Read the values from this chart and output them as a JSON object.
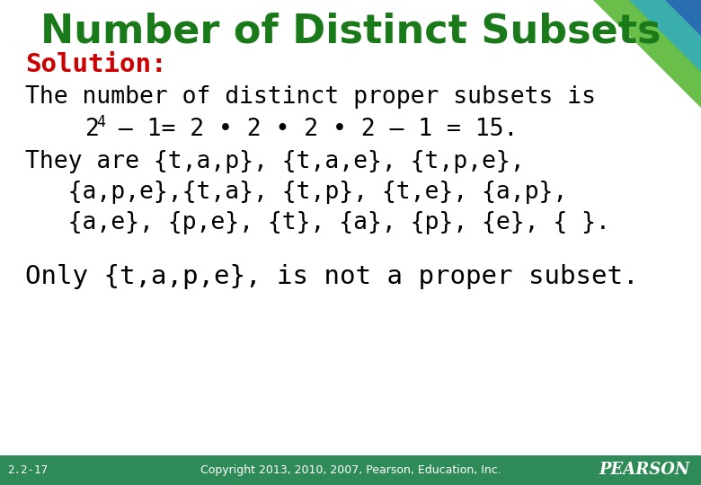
{
  "title": "Number of Distinct Subsets",
  "title_color": "#1a7a1a",
  "solution_label": "Solution:",
  "solution_color": "#cc0000",
  "line1": "The number of distinct proper subsets is",
  "line3": "They are {t,a,p}, {t,a,e}, {t,p,e},",
  "line4": "   {a,p,e},{t,a}, {t,p}, {t,e}, {a,p},",
  "line5": "   {a,e}, {p,e}, {t}, {a}, {p}, {e}, { }.",
  "line7": "Only {t,a,p,e}, is not a proper subset.",
  "footer_left": "2.2-17",
  "footer_center": "Copyright 2013, 2010, 2007, Pearson, Education, Inc.",
  "footer_right": "PEARSON",
  "bg_color": "#ffffff",
  "footer_bg": "#2e8b57",
  "text_color": "#000000",
  "font_size_title": 32,
  "font_size_body": 19,
  "font_size_footer": 9
}
